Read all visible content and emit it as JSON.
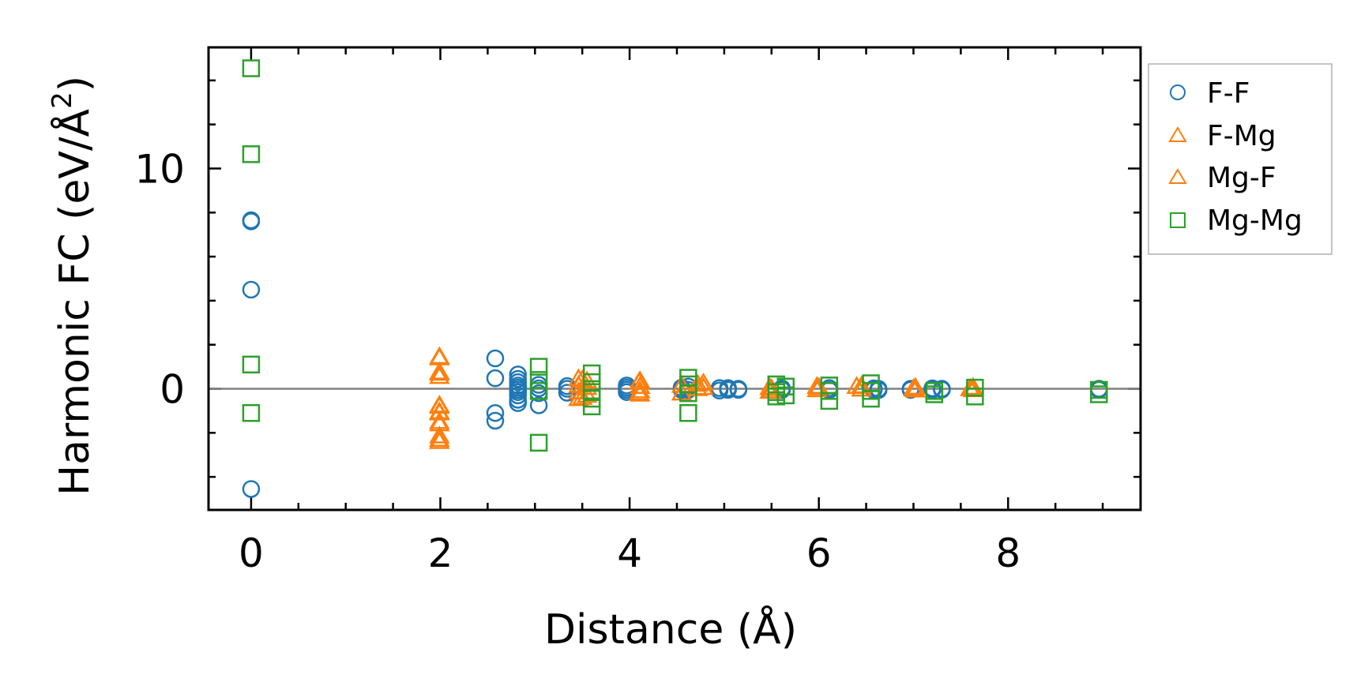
{
  "chart_data": {
    "type": "scatter",
    "title": "",
    "xlabel": "Distance (Å)",
    "ylabel": "Harmonic FC (eV/Å",
    "ylabel_superscript": "2",
    "ylabel_close": ")",
    "xlim": [
      -0.45,
      9.4
    ],
    "ylim": [
      -5.5,
      15.5
    ],
    "xticks": [
      0,
      2,
      4,
      6,
      8
    ],
    "xtick_labels": [
      "0",
      "2",
      "4",
      "6",
      "8"
    ],
    "yticks": [
      0,
      10
    ],
    "ytick_labels": [
      "0",
      "10"
    ],
    "x_minor_step": 0.5,
    "y_minor_step": 2,
    "zero_line": true,
    "grid": false,
    "legend_position": "outside-right",
    "series": [
      {
        "name": "F-F",
        "marker": "circle",
        "filled": false,
        "color": "#1f77b4",
        "points": [
          [
            0,
            7.65
          ],
          [
            0,
            7.6
          ],
          [
            0,
            4.5
          ],
          [
            0,
            -4.55
          ],
          [
            2.58,
            1.38
          ],
          [
            2.58,
            0.48
          ],
          [
            2.58,
            -1.1
          ],
          [
            2.58,
            -1.45
          ],
          [
            2.82,
            0.65
          ],
          [
            2.82,
            0.45
          ],
          [
            2.82,
            0.3
          ],
          [
            2.82,
            0.15
          ],
          [
            2.82,
            0.05
          ],
          [
            2.82,
            -0.05
          ],
          [
            2.82,
            -0.15
          ],
          [
            2.82,
            -0.3
          ],
          [
            2.82,
            -0.5
          ],
          [
            2.82,
            -0.65
          ],
          [
            3.04,
            0.18
          ],
          [
            3.04,
            0.02
          ],
          [
            3.04,
            -0.2
          ],
          [
            3.04,
            -0.75
          ],
          [
            3.34,
            0.12
          ],
          [
            3.34,
            0.0
          ],
          [
            3.34,
            -0.18
          ],
          [
            3.97,
            0.15
          ],
          [
            3.97,
            0.05
          ],
          [
            3.97,
            -0.05
          ],
          [
            3.97,
            -0.15
          ],
          [
            4.55,
            0.05
          ],
          [
            4.55,
            -0.05
          ],
          [
            4.62,
            0.1
          ],
          [
            4.62,
            -0.05
          ],
          [
            4.95,
            0.03
          ],
          [
            4.95,
            -0.08
          ],
          [
            5.04,
            0.03
          ],
          [
            5.04,
            -0.05
          ],
          [
            5.15,
            0.0
          ],
          [
            5.15,
            -0.05
          ],
          [
            5.61,
            0.02
          ],
          [
            5.61,
            -0.05
          ],
          [
            6.11,
            0.03
          ],
          [
            6.11,
            -0.06
          ],
          [
            6.58,
            0.02
          ],
          [
            6.58,
            -0.05
          ],
          [
            6.63,
            0.0
          ],
          [
            6.63,
            -0.06
          ],
          [
            6.97,
            0.0
          ],
          [
            6.97,
            -0.05
          ],
          [
            7.2,
            0.02
          ],
          [
            7.2,
            -0.05
          ],
          [
            7.3,
            0.0
          ],
          [
            7.3,
            -0.04
          ],
          [
            8.96,
            0.0
          ],
          [
            8.96,
            -0.05
          ]
        ]
      },
      {
        "name": "F-Mg",
        "marker": "triangle",
        "filled": false,
        "color": "#ff7f0e",
        "points": [
          [
            1.99,
            1.45
          ],
          [
            1.99,
            0.75
          ],
          [
            1.99,
            0.55
          ],
          [
            1.99,
            -0.75
          ],
          [
            1.99,
            -1.05
          ],
          [
            1.99,
            -1.5
          ],
          [
            1.99,
            -2.15
          ],
          [
            1.99,
            -2.4
          ],
          [
            3.46,
            0.45
          ],
          [
            3.46,
            0.15
          ],
          [
            3.46,
            -0.15
          ],
          [
            3.46,
            -0.45
          ],
          [
            3.55,
            0.35
          ],
          [
            3.55,
            0.05
          ],
          [
            3.55,
            -0.3
          ],
          [
            4.11,
            0.35
          ],
          [
            4.11,
            0.1
          ],
          [
            4.11,
            -0.1
          ],
          [
            4.11,
            -0.25
          ],
          [
            4.55,
            0.15
          ],
          [
            4.55,
            -0.2
          ],
          [
            4.78,
            0.25
          ],
          [
            4.78,
            0.05
          ],
          [
            5.48,
            0.05
          ],
          [
            5.48,
            -0.12
          ],
          [
            5.98,
            0.1
          ],
          [
            5.98,
            -0.05
          ],
          [
            6.45,
            0.12
          ],
          [
            6.45,
            -0.02
          ],
          [
            7.02,
            0.06
          ],
          [
            7.02,
            -0.06
          ],
          [
            7.63,
            0.06
          ],
          [
            7.63,
            -0.05
          ]
        ]
      },
      {
        "name": "Mg-F",
        "marker": "triangle",
        "filled": false,
        "color": "#ff7f0e",
        "points": [
          [
            1.99,
            1.4
          ],
          [
            1.99,
            0.7
          ],
          [
            1.99,
            -0.8
          ],
          [
            1.99,
            -1.1
          ],
          [
            1.99,
            -1.6
          ],
          [
            1.99,
            -2.3
          ],
          [
            3.5,
            0.4
          ],
          [
            3.5,
            -0.4
          ],
          [
            4.1,
            0.3
          ],
          [
            4.1,
            -0.2
          ],
          [
            4.72,
            0.2
          ],
          [
            4.72,
            0.0
          ],
          [
            5.5,
            0.0
          ],
          [
            5.5,
            -0.1
          ],
          [
            6.0,
            0.05
          ],
          [
            6.4,
            0.1
          ],
          [
            7.0,
            0.0
          ],
          [
            7.6,
            0.0
          ]
        ]
      },
      {
        "name": "Mg-Mg",
        "marker": "square",
        "filled": false,
        "color": "#2ca02c",
        "points": [
          [
            0,
            14.55
          ],
          [
            0,
            10.65
          ],
          [
            0,
            1.1
          ],
          [
            0,
            -1.1
          ],
          [
            3.04,
            1.0
          ],
          [
            3.04,
            0.4
          ],
          [
            3.04,
            -0.1
          ],
          [
            3.04,
            -2.45
          ],
          [
            3.6,
            0.7
          ],
          [
            3.6,
            0.3
          ],
          [
            3.6,
            -0.15
          ],
          [
            3.6,
            -0.45
          ],
          [
            3.6,
            -0.8
          ],
          [
            4.62,
            0.5
          ],
          [
            4.62,
            0.2
          ],
          [
            4.62,
            -0.2
          ],
          [
            4.62,
            -1.1
          ],
          [
            5.55,
            0.2
          ],
          [
            5.55,
            -0.15
          ],
          [
            5.55,
            -0.35
          ],
          [
            5.65,
            0.1
          ],
          [
            5.65,
            -0.3
          ],
          [
            6.11,
            0.15
          ],
          [
            6.11,
            -0.1
          ],
          [
            6.11,
            -0.55
          ],
          [
            6.55,
            0.25
          ],
          [
            6.55,
            -0.1
          ],
          [
            6.55,
            -0.45
          ],
          [
            7.22,
            -0.1
          ],
          [
            7.22,
            -0.25
          ],
          [
            7.65,
            0.05
          ],
          [
            7.65,
            -0.35
          ],
          [
            8.96,
            -0.05
          ],
          [
            8.96,
            -0.25
          ]
        ]
      }
    ]
  }
}
